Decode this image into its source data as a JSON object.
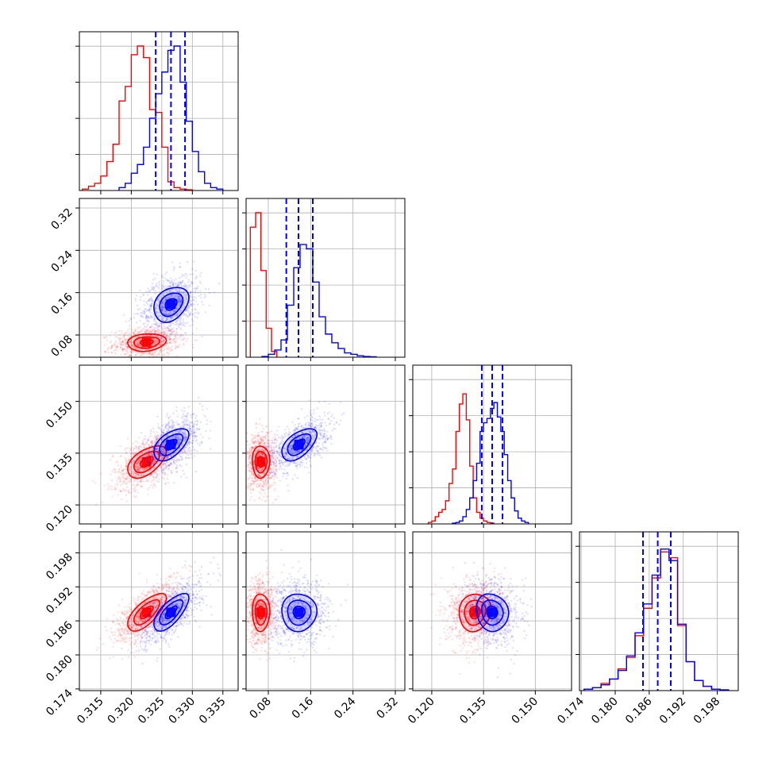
{
  "colors": {
    "series_a": "#ff0000",
    "series_b": "#0000ff",
    "grid": "#b0b0b0",
    "axes": "#000000"
  },
  "chart_data": {
    "type": "corner",
    "grid": true,
    "params": [
      {
        "ticks": [
          "0.315",
          "0.320",
          "0.325",
          "0.330",
          "0.335"
        ],
        "lim": [
          0.3115,
          0.3375
        ]
      },
      {
        "ticks": [
          "0.08",
          "0.16",
          "0.24",
          "0.32"
        ],
        "lim": [
          0.038,
          0.338
        ]
      },
      {
        "ticks": [
          "0.120",
          "0.135",
          "0.150"
        ],
        "lim": [
          0.1145,
          0.1605
        ]
      },
      {
        "ticks": [
          "0.174",
          "0.180",
          "0.186",
          "0.192",
          "0.198"
        ],
        "lim": [
          0.1737,
          0.2017
        ]
      }
    ],
    "series": [
      {
        "color_key": "series_a",
        "means": [
          0.3225,
          0.066,
          0.1325,
          0.1875
        ],
        "stds": [
          0.0021,
          0.011,
          0.0031,
          0.0022
        ],
        "correlations": [
          [
            0,
            1,
            0.15
          ],
          [
            0,
            2,
            0.55
          ],
          [
            0,
            3,
            0.7
          ],
          [
            1,
            2,
            0.0
          ],
          [
            1,
            3,
            0.0
          ],
          [
            2,
            3,
            0.1
          ]
        ],
        "histograms": [
          {
            "edges": [
              0.312,
              0.313,
              0.314,
              0.315,
              0.316,
              0.317,
              0.318,
              0.319,
              0.32,
              0.321,
              0.322,
              0.323,
              0.324,
              0.325,
              0.326,
              0.327,
              0.328,
              0.329,
              0.33
            ],
            "values": [
              0.01,
              0.03,
              0.05,
              0.1,
              0.2,
              0.32,
              0.62,
              0.72,
              0.94,
              1.0,
              0.92,
              0.56,
              0.54,
              0.3,
              0.06,
              0.02,
              0.01,
              0.005
            ]
          },
          {
            "edges": [
              0.046,
              0.056,
              0.066,
              0.076,
              0.086,
              0.096
            ],
            "values": [
              0.9,
              1.0,
              0.6,
              0.2,
              0.04
            ]
          },
          {
            "edges": [
              0.119,
              0.12,
              0.121,
              0.122,
              0.123,
              0.124,
              0.125,
              0.126,
              0.127,
              0.128,
              0.129,
              0.13,
              0.131,
              0.132,
              0.133,
              0.134,
              0.135,
              0.136,
              0.137,
              0.138
            ],
            "values": [
              0.01,
              0.02,
              0.05,
              0.08,
              0.1,
              0.16,
              0.28,
              0.38,
              0.64,
              0.83,
              0.9,
              0.72,
              0.4,
              0.18,
              0.08,
              0.04,
              0.02,
              0.01,
              0.005
            ]
          },
          {
            "edges": [
              0.1745,
              0.176,
              0.1775,
              0.179,
              0.1805,
              0.182,
              0.1835,
              0.185,
              0.1865,
              0.188,
              0.1895,
              0.191,
              0.1925,
              0.194,
              0.1955,
              0.197,
              0.1985,
              0.2
            ],
            "values": [
              0.01,
              0.02,
              0.05,
              0.08,
              0.15,
              0.23,
              0.38,
              0.57,
              0.78,
              0.96,
              0.92,
              0.45,
              0.2,
              0.07,
              0.03,
              0.01,
              0.005
            ]
          }
        ]
      },
      {
        "color_key": "series_b",
        "means": [
          0.3265,
          0.138,
          0.1375,
          0.1875
        ],
        "stds": [
          0.0019,
          0.022,
          0.0031,
          0.0022
        ],
        "correlations": [
          [
            0,
            1,
            0.3
          ],
          [
            0,
            2,
            0.55
          ],
          [
            0,
            3,
            0.7
          ],
          [
            1,
            2,
            0.55
          ],
          [
            1,
            3,
            0.0
          ],
          [
            2,
            3,
            -0.1
          ]
        ],
        "histograms": [
          {
            "edges": [
              0.318,
              0.319,
              0.32,
              0.321,
              0.322,
              0.323,
              0.324,
              0.325,
              0.326,
              0.327,
              0.328,
              0.329,
              0.33,
              0.331,
              0.332,
              0.333,
              0.334,
              0.335
            ],
            "values": [
              0.02,
              0.05,
              0.12,
              0.18,
              0.3,
              0.5,
              0.67,
              0.82,
              0.97,
              1.0,
              0.75,
              0.48,
              0.27,
              0.13,
              0.05,
              0.02,
              0.01
            ]
          },
          {
            "edges": [
              0.068,
              0.08,
              0.092,
              0.104,
              0.116,
              0.128,
              0.14,
              0.152,
              0.164,
              0.176,
              0.188,
              0.2,
              0.212,
              0.224,
              0.236,
              0.248,
              0.26,
              0.272,
              0.284
            ],
            "values": [
              0.005,
              0.02,
              0.05,
              0.12,
              0.36,
              0.62,
              0.78,
              0.75,
              0.52,
              0.28,
              0.16,
              0.1,
              0.06,
              0.03,
              0.02,
              0.01,
              0.005,
              0.003
            ]
          },
          {
            "edges": [
              0.126,
              0.127,
              0.128,
              0.129,
              0.13,
              0.131,
              0.132,
              0.133,
              0.134,
              0.135,
              0.136,
              0.137,
              0.138,
              0.139,
              0.14,
              0.141,
              0.142,
              0.143,
              0.144,
              0.145,
              0.146,
              0.147,
              0.148
            ],
            "values": [
              0.005,
              0.01,
              0.02,
              0.05,
              0.1,
              0.18,
              0.3,
              0.42,
              0.64,
              0.7,
              0.73,
              0.8,
              0.84,
              0.74,
              0.64,
              0.48,
              0.3,
              0.18,
              0.09,
              0.04,
              0.02,
              0.01
            ]
          },
          {
            "edges": [
              0.1745,
              0.176,
              0.1775,
              0.179,
              0.1805,
              0.182,
              0.1835,
              0.185,
              0.1865,
              0.188,
              0.1895,
              0.191,
              0.1925,
              0.194,
              0.1955,
              0.197,
              0.1985,
              0.2
            ],
            "values": [
              0.01,
              0.02,
              0.04,
              0.08,
              0.14,
              0.24,
              0.4,
              0.6,
              0.8,
              0.98,
              0.9,
              0.46,
              0.2,
              0.07,
              0.03,
              0.01,
              0.005
            ]
          }
        ]
      }
    ],
    "quantile_lines": [
      [
        0.324,
        0.3265,
        0.3288
      ],
      [
        0.114,
        0.137,
        0.164
      ],
      [
        0.1345,
        0.1375,
        0.1405
      ],
      [
        0.1849,
        0.1875,
        0.1898
      ]
    ],
    "quantile_color_key": "series_b",
    "contour_sigmas": [
      0.5,
      1.0,
      1.5
    ],
    "scatter_points_per_series": 900
  }
}
